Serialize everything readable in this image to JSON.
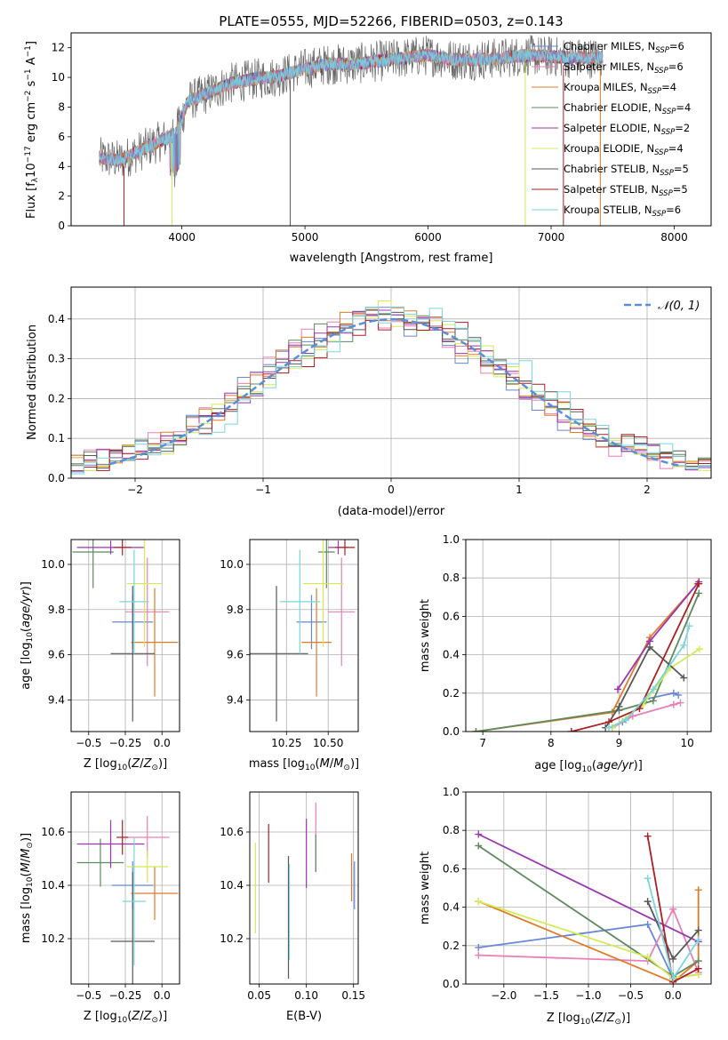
{
  "colors": {
    "Chabrier MILES": "#6688d6",
    "Salpeter MILES": "#e97fb8",
    "Kroupa MILES": "#e07b28",
    "Chabrier ELODIE": "#5e8a5e",
    "Salpeter ELODIE": "#9b35b2",
    "Kroupa ELODIE": "#d4ea55",
    "Chabrier STELIB": "#575757",
    "Salpeter STELIB": "#ab1f25",
    "Kroupa STELIB": "#7ad6dc"
  },
  "chart_data": [
    {
      "id": "spectrum",
      "type": "line",
      "title": "PLATE=0555, MJD=52266, FIBERID=0503, z=0.143",
      "xlabel": "wavelength [Angstrom, rest frame]",
      "ylabel": "Flux [f",
      "ylabel_parts": [
        "Flux [f",
        "λ",
        "10",
        "−17",
        " erg cm",
        "−2",
        " s",
        "−1",
        " A",
        "−1",
        "]"
      ],
      "xlim": [
        3100,
        8300
      ],
      "ylim": [
        0,
        13
      ],
      "xticks": [
        4000,
        5000,
        6000,
        7000,
        8000
      ],
      "yticks": [
        0,
        2,
        4,
        6,
        8,
        10,
        12
      ],
      "grid": false,
      "legend_position": "top-right",
      "continuum": {
        "x": [
          3330,
          3500,
          3700,
          3850,
          3950,
          4050,
          4200,
          4400,
          4600,
          4800,
          5000,
          5200,
          5400,
          5600,
          5800,
          6000,
          6200,
          6400,
          6600,
          6800,
          7000,
          7200,
          7420
        ],
        "y": [
          4.6,
          4.4,
          5.2,
          5.8,
          6.2,
          8.4,
          8.9,
          9.6,
          9.9,
          10.1,
          10.6,
          10.9,
          10.9,
          11.1,
          11.3,
          11.5,
          11.2,
          11.2,
          11.3,
          11.5,
          11.4,
          11.3,
          11.3
        ]
      },
      "cutoffs": [
        {
          "model": "Salpeter STELIB",
          "x": 3530
        },
        {
          "model": "Kroupa ELODIE",
          "x": 3920
        },
        {
          "model": "Chabrier STELIB",
          "x": 4880
        },
        {
          "model": "Kroupa ELODIE",
          "x": 6790
        },
        {
          "model": "Salpeter STELIB",
          "x": 7100
        },
        {
          "model": "Kroupa MILES",
          "x": 7400
        }
      ],
      "legend": [
        {
          "base": "Chabrier MILES, N",
          "sub": "SSP",
          "tail": "=6",
          "color": "Chabrier MILES"
        },
        {
          "base": "Salpeter MILES, N",
          "sub": "SSP",
          "tail": "=6",
          "color": "Salpeter MILES"
        },
        {
          "base": "Kroupa MILES, N",
          "sub": "SSP",
          "tail": "=4",
          "color": "Kroupa MILES"
        },
        {
          "base": "Chabrier ELODIE, N",
          "sub": "SSP",
          "tail": "=4",
          "color": "Chabrier ELODIE"
        },
        {
          "base": "Salpeter ELODIE, N",
          "sub": "SSP",
          "tail": "=2",
          "color": "Salpeter ELODIE"
        },
        {
          "base": "Kroupa ELODIE, N",
          "sub": "SSP",
          "tail": "=4",
          "color": "Kroupa ELODIE"
        },
        {
          "base": "Chabrier STELIB, N",
          "sub": "SSP",
          "tail": "=5",
          "color": "Chabrier STELIB"
        },
        {
          "base": "Salpeter STELIB, N",
          "sub": "SSP",
          "tail": "=5",
          "color": "Salpeter STELIB"
        },
        {
          "base": "Kroupa STELIB, N",
          "sub": "SSP",
          "tail": "=6",
          "color": "Kroupa STELIB"
        }
      ]
    },
    {
      "id": "residuals",
      "type": "bar",
      "xlabel": "(data-model)/error",
      "ylabel": "Normed distribution",
      "xlim": [
        -2.5,
        2.5
      ],
      "ylim": [
        0,
        0.48
      ],
      "xticks": [
        -2,
        -1,
        0,
        1,
        2
      ],
      "yticks": [
        0.0,
        0.1,
        0.2,
        0.3,
        0.4
      ],
      "grid": true,
      "legend_position": "top-right",
      "normal_curve": {
        "label": "𝒩(0, 1)",
        "color": "#5a8fd6",
        "mean": 0,
        "sigma": 1
      },
      "bin_width": 0.1
    },
    {
      "id": "age_vs_Z",
      "type": "scatter",
      "xlabel": "Z [log",
      "ylabel": "age  [log",
      "xlim": [
        -0.62,
        0.12
      ],
      "ylim": [
        9.26,
        10.11
      ],
      "xticks": [
        -0.5,
        -0.25,
        0.0
      ],
      "xticklabels": [
        "−0.5",
        "−0.25",
        "0.0"
      ],
      "yticks": [
        9.4,
        9.6,
        9.8,
        10.0
      ],
      "grid": true,
      "points": [
        {
          "model": "Chabrier MILES",
          "x": -0.2,
          "xerr": 0.14,
          "y": 9.745,
          "yerr": 0.12
        },
        {
          "model": "Salpeter MILES",
          "x": -0.1,
          "xerr": 0.15,
          "y": 9.79,
          "yerr": 0.24
        },
        {
          "model": "Kroupa MILES",
          "x": -0.05,
          "xerr": 0.16,
          "y": 9.655,
          "yerr": 0.24
        },
        {
          "model": "Chabrier ELODIE",
          "x": -0.47,
          "xerr": 0.14,
          "y": 10.055,
          "yerr": 0.16
        },
        {
          "model": "Salpeter ELODIE",
          "x": -0.35,
          "xerr": 0.23,
          "y": 10.075,
          "yerr": 0.03
        },
        {
          "model": "Kroupa ELODIE",
          "x": -0.12,
          "xerr": 0.12,
          "y": 9.915,
          "yerr": 0.28
        },
        {
          "model": "Chabrier STELIB",
          "x": -0.2,
          "xerr": 0.15,
          "y": 9.605,
          "yerr": 0.3
        },
        {
          "model": "Salpeter STELIB",
          "x": -0.27,
          "xerr": 0.06,
          "y": 10.075,
          "yerr": 0.035
        },
        {
          "model": "Kroupa STELIB",
          "x": -0.19,
          "xerr": 0.1,
          "y": 9.835,
          "yerr": 0.23
        }
      ]
    },
    {
      "id": "age_vs_mass",
      "type": "scatter",
      "xlabel": "mass [log",
      "xlim": [
        10.03,
        10.68
      ],
      "ylim": [
        9.26,
        10.11
      ],
      "xticks": [
        10.25,
        10.5
      ],
      "xticklabels": [
        "10.25",
        "10.50"
      ],
      "yticks": [
        9.4,
        9.6,
        9.8,
        10.0
      ],
      "grid": true,
      "points": [
        {
          "model": "Chabrier MILES",
          "x": 10.4,
          "xerr": 0.09,
          "y": 9.745,
          "yerr": 0.12
        },
        {
          "model": "Salpeter MILES",
          "x": 10.58,
          "xerr": 0.08,
          "y": 9.79,
          "yerr": 0.24
        },
        {
          "model": "Kroupa MILES",
          "x": 10.43,
          "xerr": 0.09,
          "y": 9.655,
          "yerr": 0.24
        },
        {
          "model": "Chabrier ELODIE",
          "x": 10.49,
          "xerr": 0.05,
          "y": 10.055,
          "yerr": 0.16
        },
        {
          "model": "Salpeter ELODIE",
          "x": 10.56,
          "xerr": 0.06,
          "y": 10.075,
          "yerr": 0.03
        },
        {
          "model": "Kroupa ELODIE",
          "x": 10.47,
          "xerr": 0.12,
          "y": 9.915,
          "yerr": 0.28
        },
        {
          "model": "Chabrier STELIB",
          "x": 10.19,
          "xerr": 0.19,
          "y": 9.605,
          "yerr": 0.3
        },
        {
          "model": "Salpeter STELIB",
          "x": 10.6,
          "xerr": 0.06,
          "y": 10.075,
          "yerr": 0.035
        },
        {
          "model": "Kroupa STELIB",
          "x": 10.33,
          "xerr": 0.12,
          "y": 9.835,
          "yerr": 0.23
        }
      ]
    },
    {
      "id": "weight_vs_age",
      "type": "line",
      "xlabel": "age  [log",
      "ylabel": "mass weight",
      "xlim": [
        6.75,
        10.35
      ],
      "ylim": [
        0,
        1
      ],
      "xticks": [
        7,
        8,
        9,
        10
      ],
      "yticks": [
        0.0,
        0.2,
        0.4,
        0.6,
        0.8,
        1.0
      ],
      "grid": true,
      "series": [
        {
          "model": "Chabrier MILES",
          "x": [
            8.9,
            9.05,
            9.4,
            9.8,
            9.87
          ],
          "y": [
            0.02,
            0.05,
            0.17,
            0.2,
            0.19
          ]
        },
        {
          "model": "Salpeter MILES",
          "x": [
            8.9,
            9.2,
            9.8,
            9.9
          ],
          "y": [
            0.02,
            0.08,
            0.14,
            0.15
          ]
        },
        {
          "model": "Kroupa MILES",
          "x": [
            6.9,
            8.9,
            9.45,
            10.15
          ],
          "y": [
            0.0,
            0.1,
            0.49,
            0.77
          ]
        },
        {
          "model": "Chabrier ELODIE",
          "x": [
            6.9,
            9.0,
            9.5,
            10.17
          ],
          "y": [
            0.0,
            0.11,
            0.16,
            0.72
          ]
        },
        {
          "model": "Salpeter ELODIE",
          "x": [
            8.98,
            9.45,
            10.17
          ],
          "y": [
            0.22,
            0.47,
            0.78
          ]
        },
        {
          "model": "Kroupa ELODIE",
          "x": [
            8.9,
            9.35,
            9.75,
            10.18
          ],
          "y": [
            0.02,
            0.14,
            0.33,
            0.43
          ]
        },
        {
          "model": "Chabrier STELIB",
          "x": [
            8.8,
            9.0,
            9.45,
            9.95
          ],
          "y": [
            0.02,
            0.13,
            0.44,
            0.28
          ]
        },
        {
          "model": "Salpeter STELIB",
          "x": [
            8.3,
            8.85,
            9.3,
            10.17
          ],
          "y": [
            0.0,
            0.05,
            0.12,
            0.77
          ]
        },
        {
          "model": "Kroupa STELIB",
          "x": [
            8.85,
            9.1,
            9.5,
            9.95,
            10.03
          ],
          "y": [
            0.02,
            0.06,
            0.22,
            0.45,
            0.55
          ]
        }
      ]
    },
    {
      "id": "mass_vs_Z",
      "type": "scatter",
      "xlabel": "Z [log",
      "ylabel": "mass [log",
      "xlim": [
        -0.62,
        0.12
      ],
      "ylim": [
        10.03,
        10.75
      ],
      "xticks": [
        -0.5,
        -0.25,
        0.0
      ],
      "xticklabels": [
        "−0.5",
        "−0.25",
        "0.0"
      ],
      "yticks": [
        10.2,
        10.4,
        10.6
      ],
      "grid": true,
      "points": [
        {
          "model": "Chabrier MILES",
          "x": -0.2,
          "xerr": 0.14,
          "y": 10.4,
          "yerr": 0.09
        },
        {
          "model": "Salpeter MILES",
          "x": -0.1,
          "xerr": 0.15,
          "y": 10.58,
          "yerr": 0.08
        },
        {
          "model": "Kroupa MILES",
          "x": -0.05,
          "xerr": 0.16,
          "y": 10.37,
          "yerr": 0.1
        },
        {
          "model": "Chabrier ELODIE",
          "x": -0.42,
          "xerr": 0.16,
          "y": 10.485,
          "yerr": 0.09
        },
        {
          "model": "Salpeter ELODIE",
          "x": -0.35,
          "xerr": 0.23,
          "y": 10.555,
          "yerr": 0.09
        },
        {
          "model": "Kroupa ELODIE",
          "x": -0.1,
          "xerr": 0.14,
          "y": 10.47,
          "yerr": 0.06
        },
        {
          "model": "Chabrier STELIB",
          "x": -0.2,
          "xerr": 0.15,
          "y": 10.19,
          "yerr": 0.26
        },
        {
          "model": "Salpeter STELIB",
          "x": -0.27,
          "xerr": 0.04,
          "y": 10.58,
          "yerr": 0.065
        },
        {
          "model": "Kroupa STELIB",
          "x": -0.19,
          "xerr": 0.08,
          "y": 10.34,
          "yerr": 0.24
        }
      ]
    },
    {
      "id": "mass_vs_ebv",
      "type": "scatter",
      "xlabel": "E(B-V)",
      "xlim": [
        0.04,
        0.155
      ],
      "ylim": [
        10.03,
        10.75
      ],
      "xticks": [
        0.05,
        0.1,
        0.15
      ],
      "xticklabels": [
        "0.05",
        "0.10",
        "0.15"
      ],
      "yticks": [
        10.2,
        10.4,
        10.6
      ],
      "grid": true,
      "points": [
        {
          "model": "Chabrier MILES",
          "x": 0.151,
          "y": 10.4,
          "yerr": 0.09
        },
        {
          "model": "Salpeter MILES",
          "x": 0.11,
          "y": 10.58,
          "yerr": 0.13
        },
        {
          "model": "Kroupa MILES",
          "x": 0.148,
          "y": 10.43,
          "yerr": 0.09
        },
        {
          "model": "Chabrier ELODIE",
          "x": 0.11,
          "y": 10.52,
          "yerr": 0.07
        },
        {
          "model": "Salpeter ELODIE",
          "x": 0.1,
          "y": 10.52,
          "yerr": 0.13
        },
        {
          "model": "Kroupa ELODIE",
          "x": 0.046,
          "y": 10.39,
          "yerr": 0.17
        },
        {
          "model": "Chabrier STELIB",
          "x": 0.081,
          "y": 10.28,
          "yerr": 0.23
        },
        {
          "model": "Salpeter STELIB",
          "x": 0.06,
          "y": 10.52,
          "yerr": 0.11
        },
        {
          "model": "Kroupa STELIB",
          "x": 0.082,
          "y": 10.3,
          "yerr": 0.18
        }
      ]
    },
    {
      "id": "weight_vs_Z",
      "type": "line",
      "xlabel": "Z [log",
      "ylabel": "mass weight",
      "xlim": [
        -2.45,
        0.45
      ],
      "ylim": [
        0,
        1
      ],
      "xticks": [
        -2.0,
        -1.5,
        -1.0,
        -0.5,
        0.0
      ],
      "xticklabels": [
        "−2.0",
        "−1.5",
        "−1.0",
        "−0.5",
        "0.0"
      ],
      "yticks": [
        0.0,
        0.2,
        0.4,
        0.6,
        0.8,
        1.0
      ],
      "grid": true,
      "series": [
        {
          "model": "Chabrier MILES",
          "x": [
            -2.3,
            -0.3,
            0.0,
            0.3
          ],
          "y": [
            0.19,
            0.31,
            0.03,
            0.05
          ]
        },
        {
          "model": "Salpeter MILES",
          "x": [
            -2.3,
            -0.3,
            0.0,
            0.3
          ],
          "y": [
            0.15,
            0.12,
            0.39,
            0.06
          ]
        },
        {
          "model": "Kroupa MILES",
          "x": [
            -2.3,
            0.0,
            0.3,
            0.3
          ],
          "y": [
            0.43,
            0.01,
            0.12,
            0.49
          ]
        },
        {
          "model": "Chabrier ELODIE",
          "x": [
            -2.3,
            0.0,
            0.3
          ],
          "y": [
            0.72,
            0.04,
            0.12
          ]
        },
        {
          "model": "Salpeter ELODIE",
          "x": [
            -2.3,
            0.3
          ],
          "y": [
            0.78,
            0.22
          ]
        },
        {
          "model": "Kroupa ELODIE",
          "x": [
            -2.3,
            -0.3,
            0.0,
            0.3
          ],
          "y": [
            0.43,
            0.14,
            0.03,
            0.05
          ]
        },
        {
          "model": "Chabrier STELIB",
          "x": [
            -0.3,
            0.0,
            0.3
          ],
          "y": [
            0.43,
            0.13,
            0.28
          ]
        },
        {
          "model": "Salpeter STELIB",
          "x": [
            -0.3,
            0.0,
            0.3
          ],
          "y": [
            0.77,
            0.01,
            0.08
          ]
        },
        {
          "model": "Kroupa STELIB",
          "x": [
            -0.3,
            0.0,
            0.3
          ],
          "y": [
            0.55,
            0.03,
            0.23
          ]
        }
      ]
    }
  ]
}
